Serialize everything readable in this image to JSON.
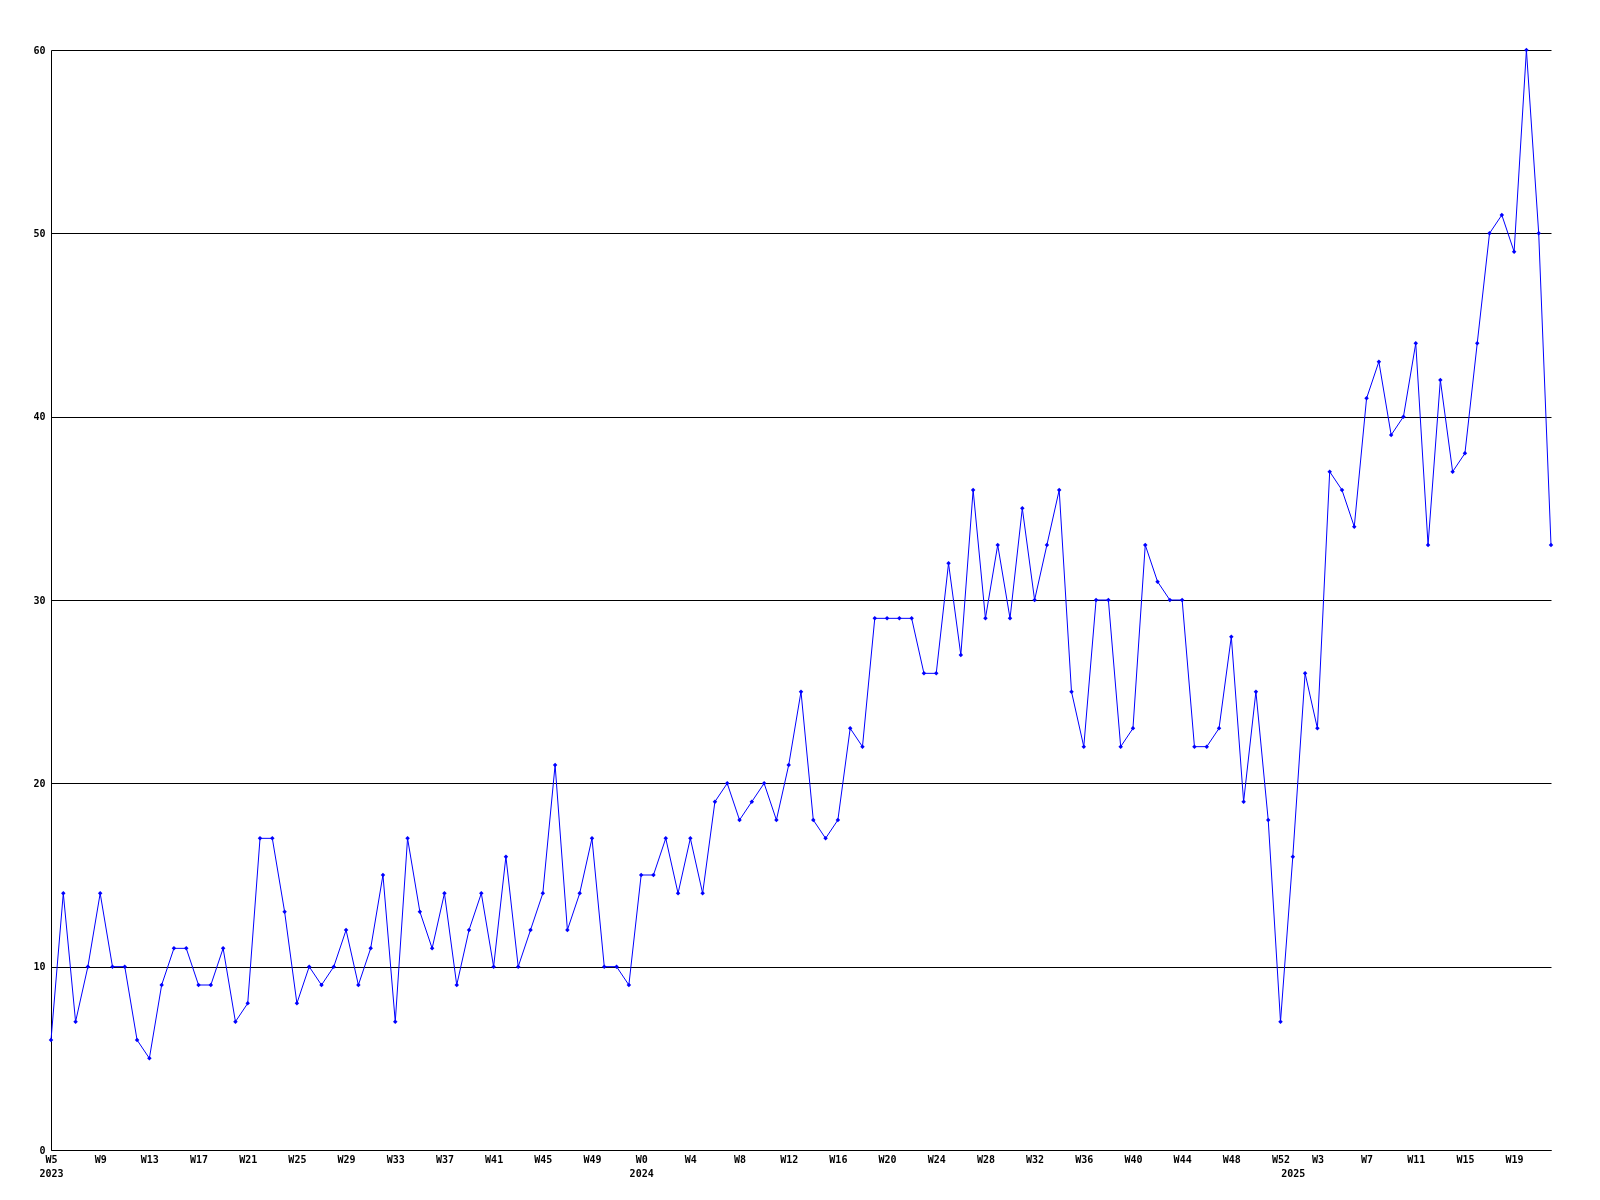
{
  "chart_data": {
    "type": "line",
    "categories": [
      "W5\n2023",
      null,
      null,
      null,
      "W9",
      null,
      null,
      null,
      "W13",
      null,
      null,
      null,
      "W17",
      null,
      null,
      null,
      "W21",
      null,
      null,
      null,
      "W25",
      null,
      null,
      null,
      "W29",
      null,
      null,
      null,
      "W33",
      null,
      null,
      null,
      "W37",
      null,
      null,
      null,
      "W41",
      null,
      null,
      null,
      "W45",
      null,
      null,
      null,
      "W49",
      null,
      null,
      null,
      "W0\n2024",
      null,
      null,
      null,
      "W4",
      null,
      null,
      null,
      "W8",
      null,
      null,
      null,
      "W12",
      null,
      null,
      null,
      "W16",
      null,
      null,
      null,
      "W20",
      null,
      null,
      null,
      "W24",
      null,
      null,
      null,
      "W28",
      null,
      null,
      null,
      "W32",
      null,
      null,
      null,
      "W36",
      null,
      null,
      null,
      "W40",
      null,
      null,
      null,
      "W44",
      null,
      null,
      null,
      "W48",
      null,
      null,
      null,
      "W52",
      "\n2025",
      null,
      "W3",
      null,
      null,
      null,
      "W7",
      null,
      null,
      null,
      "W11",
      null,
      null,
      null,
      "W15",
      null,
      null,
      null,
      "W19",
      null,
      null,
      null
    ],
    "series": [
      {
        "color": "#0000ff",
        "values": [
          6,
          14,
          7,
          10,
          14,
          10,
          10,
          6,
          5,
          9,
          11,
          11,
          9,
          9,
          11,
          7,
          8,
          17,
          17,
          13,
          8,
          10,
          9,
          10,
          12,
          9,
          11,
          15,
          7,
          17,
          13,
          11,
          14,
          9,
          12,
          14,
          10,
          16,
          10,
          12,
          14,
          21,
          12,
          14,
          17,
          10,
          10,
          9,
          15,
          15,
          17,
          14,
          17,
          14,
          19,
          20,
          18,
          19,
          20,
          18,
          21,
          25,
          18,
          17,
          18,
          23,
          22,
          29,
          29,
          29,
          29,
          26,
          26,
          32,
          27,
          36,
          29,
          33,
          29,
          35,
          30,
          33,
          36,
          25,
          22,
          30,
          30,
          22,
          23,
          33,
          31,
          30,
          30,
          22,
          22,
          23,
          28,
          19,
          25,
          18,
          7,
          16,
          26,
          23,
          37,
          36,
          34,
          41,
          43,
          39,
          40,
          44,
          33,
          42,
          37,
          38,
          44,
          50,
          51,
          49,
          60,
          50,
          33
        ]
      }
    ],
    "ylim": [
      0,
      60
    ],
    "yticks": [
      0,
      10,
      20,
      30,
      40,
      50,
      60
    ],
    "grid": "y",
    "marker": "diamond",
    "line_style": "solid"
  }
}
